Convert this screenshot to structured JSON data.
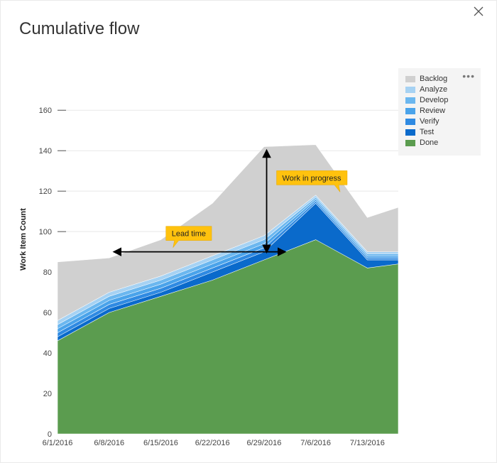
{
  "title": "Cumulative flow",
  "close_label": "Close",
  "chart": {
    "type": "area-stacked",
    "y_label": "Work Item Count",
    "ylim": [
      0,
      165
    ],
    "ytick_step": 20,
    "yticks": [
      0,
      20,
      40,
      60,
      80,
      100,
      120,
      140,
      160
    ],
    "x_categories": [
      "6/1/2016",
      "6/8/2016",
      "6/15/2016",
      "6/22/2016",
      "6/29/2016",
      "7/6/2016",
      "7/13/2016"
    ],
    "x_positions": [
      0,
      1,
      2,
      3,
      4,
      5,
      6,
      6.6
    ],
    "series": [
      {
        "name": "Done",
        "color": "#5b9c4f",
        "values": [
          46,
          60,
          68,
          76,
          86,
          96,
          82,
          84
        ]
      },
      {
        "name": "Test",
        "color": "#0a6acb",
        "values": [
          48,
          62,
          70,
          80,
          90,
          114,
          86,
          86
        ]
      },
      {
        "name": "Verify",
        "color": "#2f8ae2",
        "values": [
          50,
          64,
          72,
          82,
          92,
          115,
          87,
          87
        ]
      },
      {
        "name": "Review",
        "color": "#4aa3ea",
        "values": [
          52,
          66,
          74,
          84,
          94,
          116,
          88,
          88
        ]
      },
      {
        "name": "Develop",
        "color": "#6bb7ef",
        "values": [
          54,
          68,
          76,
          86,
          96,
          117,
          89,
          89
        ]
      },
      {
        "name": "Analyze",
        "color": "#a6d2f3",
        "values": [
          56,
          70,
          78,
          88,
          98,
          118,
          90,
          90
        ]
      },
      {
        "name": "Backlog",
        "color": "#d0d0d0",
        "values": [
          85,
          87,
          96,
          114,
          142,
          143,
          107,
          112
        ]
      }
    ],
    "legend_order": [
      "Backlog",
      "Analyze",
      "Develop",
      "Review",
      "Verify",
      "Test",
      "Done"
    ],
    "background_color": "#ffffff",
    "grid_color": "#bfbfbf",
    "axis_fontsize": 11,
    "annotations": {
      "lead_time": {
        "label": "Lead time",
        "y_value": 90,
        "x_start": 1.1,
        "x_end": 4.4,
        "callout_color": "#ffc20e"
      },
      "work_in_progress": {
        "label": "Work in progress",
        "x_value": 4.05,
        "y_start": 90,
        "y_end": 140,
        "callout_color": "#ffc20e"
      }
    }
  }
}
